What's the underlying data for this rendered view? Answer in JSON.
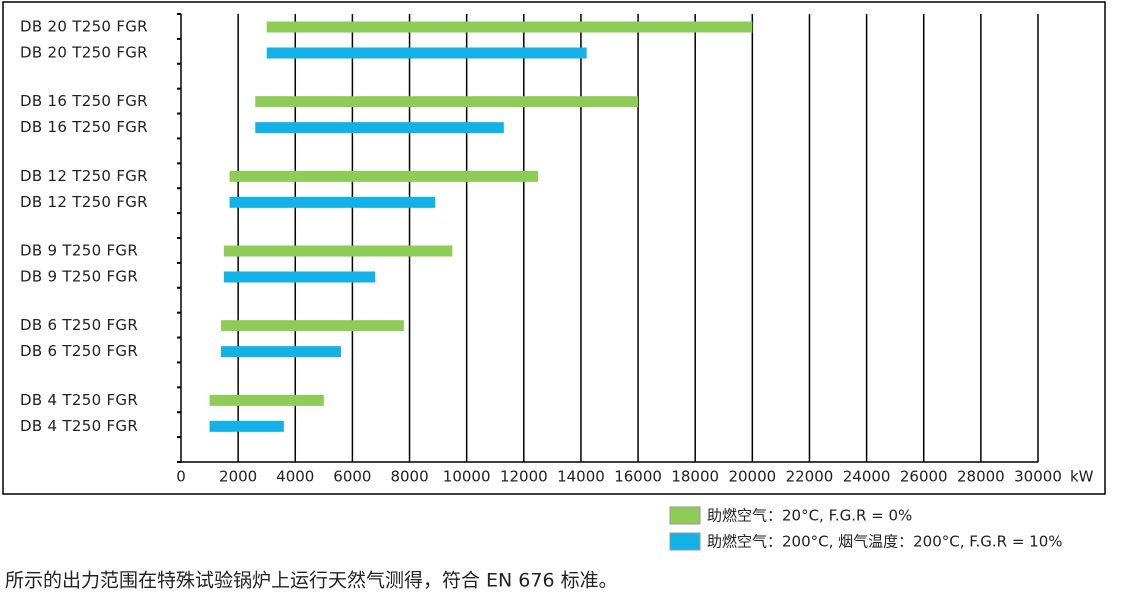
{
  "chart_data": {
    "type": "floating-bar",
    "categories": [
      [
        "DB 20  T250 FGR",
        "DB 20  T250 FGR"
      ],
      [
        "DB 16  T250 FGR",
        "DB 16  T250 FGR"
      ],
      [
        "DB 12  T250 FGR",
        "DB 12  T250 FGR"
      ],
      [
        "DB 9  T250 FGR",
        "DB 9  T250 FGR"
      ],
      [
        "DB 6  T250 FGR",
        "DB 6  T250 FGR"
      ],
      [
        "DB 4  T250 FGR",
        "DB 4  T250 FGR"
      ]
    ],
    "series": [
      {
        "name": "助燃空气：20°C,  F.G.R = 0%",
        "color": "#8ecb57",
        "values": [
          [
            3000,
            20000
          ],
          [
            2600,
            16000
          ],
          [
            1700,
            12500
          ],
          [
            1500,
            9500
          ],
          [
            1400,
            7800
          ],
          [
            1000,
            5000
          ]
        ]
      },
      {
        "name": "助燃空气：200°C, 烟气温度：200°C, F.G.R = 10%",
        "color": "#12b2e8",
        "values": [
          [
            3000,
            14200
          ],
          [
            2600,
            11300
          ],
          [
            1700,
            8900
          ],
          [
            1500,
            6800
          ],
          [
            1400,
            5600
          ],
          [
            1000,
            3600
          ]
        ]
      }
    ],
    "xlim": [
      0,
      30000
    ],
    "xticks": [
      0,
      2000,
      4000,
      6000,
      8000,
      10000,
      12000,
      14000,
      16000,
      18000,
      20000,
      22000,
      24000,
      26000,
      28000,
      30000
    ],
    "x_unit": "kW",
    "grid": true,
    "footnote": "所示的出力范围在特殊试验锅炉上运行天然气测得，符合 EN 676 标准。"
  }
}
